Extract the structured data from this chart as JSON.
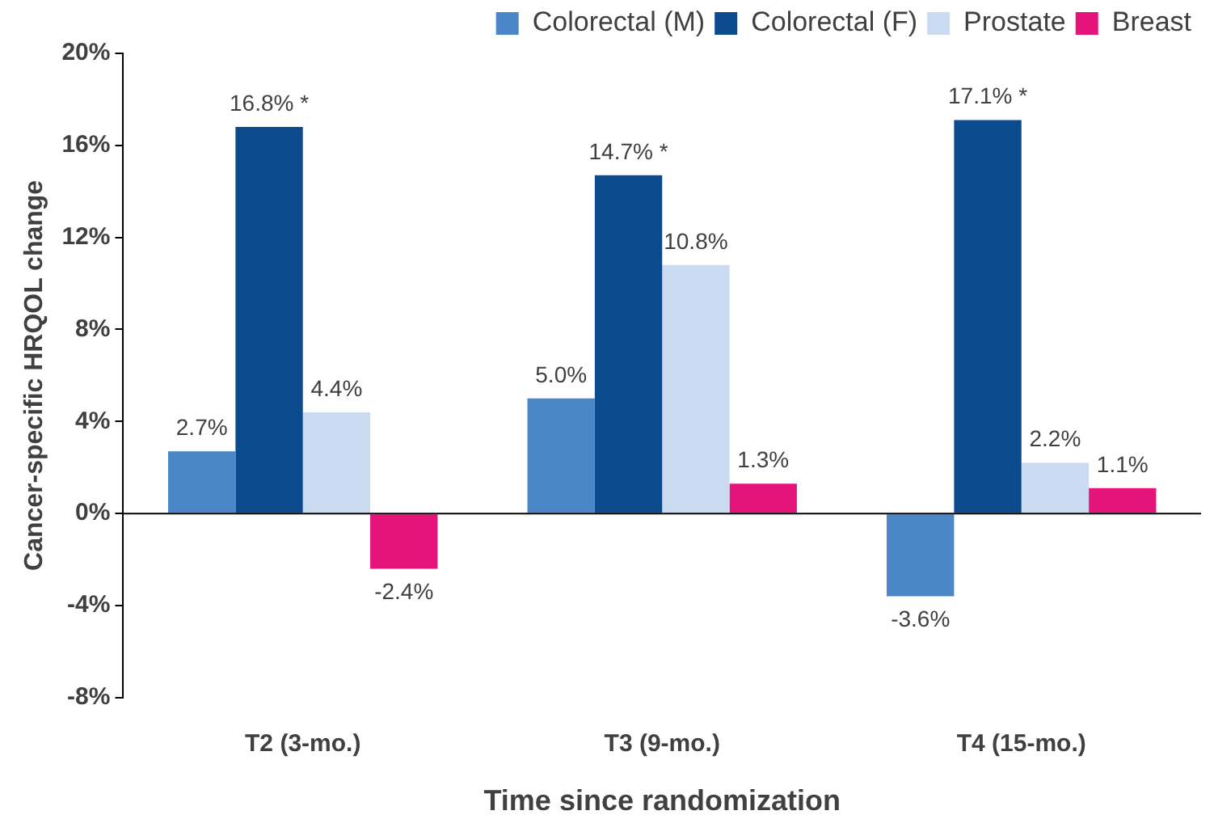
{
  "chart_data": {
    "type": "bar",
    "xlabel": "Time since randomization",
    "ylabel": "Cancer-specific HRQOL change",
    "categories": [
      "T2 (3-mo.)",
      "T3 (9-mo.)",
      "T4 (15-mo.)"
    ],
    "series": [
      {
        "name": "Colorectal (M)",
        "color": "#4a86c8",
        "values": [
          2.7,
          5.0,
          -3.6
        ],
        "value_labels": [
          "2.7%",
          "5.0%",
          "-3.6%"
        ]
      },
      {
        "name": "Colorectal (F)",
        "color": "#0c4a8e",
        "values": [
          16.8,
          14.7,
          17.1
        ],
        "value_labels": [
          "16.8% *",
          "14.7% *",
          "17.1% *"
        ]
      },
      {
        "name": "Prostate",
        "color": "#c9daf1",
        "values": [
          4.4,
          10.8,
          2.2
        ],
        "value_labels": [
          "4.4%",
          "10.8%",
          "2.2%"
        ]
      },
      {
        "name": "Breast",
        "color": "#e5147b",
        "values": [
          -2.4,
          1.3,
          1.1
        ],
        "value_labels": [
          "-2.4%",
          "1.3%",
          "1.1%"
        ]
      }
    ],
    "ylim": [
      -8,
      20
    ],
    "yticks": [
      {
        "value": -8,
        "label": "-8%"
      },
      {
        "value": -4,
        "label": "-4%"
      },
      {
        "value": 0,
        "label": "0%"
      },
      {
        "value": 4,
        "label": "4%"
      },
      {
        "value": 8,
        "label": "8%"
      },
      {
        "value": 12,
        "label": "12%"
      },
      {
        "value": 16,
        "label": "16%"
      },
      {
        "value": 20,
        "label": "20%"
      }
    ],
    "ref_lines": [
      {
        "axis": "y",
        "value": 0,
        "color": "#000000"
      }
    ],
    "grid": false,
    "legend": "top right"
  }
}
